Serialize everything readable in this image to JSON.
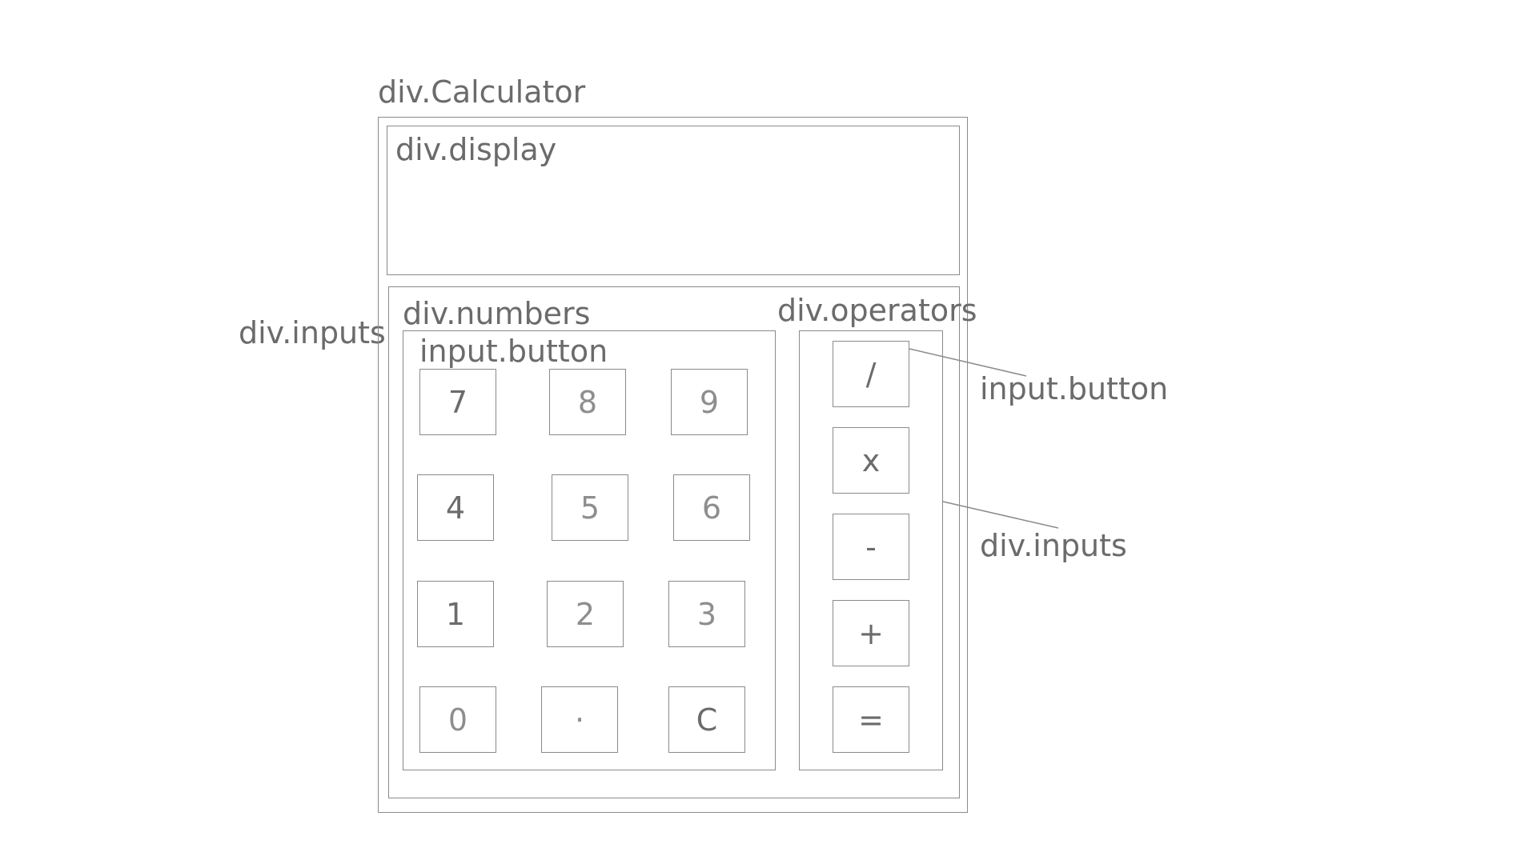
{
  "labels": {
    "calculator": "div.Calculator",
    "display": "div.display",
    "inputs_left": "div.inputs",
    "numbers": "div.numbers",
    "numbers_button": "input.button",
    "operators": "div.operators",
    "operators_button_callout": "input.button",
    "operators_inputs_callout": "div.inputs"
  },
  "number_keys": [
    "7",
    "8",
    "9",
    "4",
    "5",
    "6",
    "1",
    "2",
    "3",
    "0",
    "·",
    "C"
  ],
  "operator_keys": [
    "/",
    "x",
    "-",
    "+",
    "="
  ],
  "colors": {
    "stroke": "#8a8a8a",
    "text": "#6b6b6b"
  }
}
